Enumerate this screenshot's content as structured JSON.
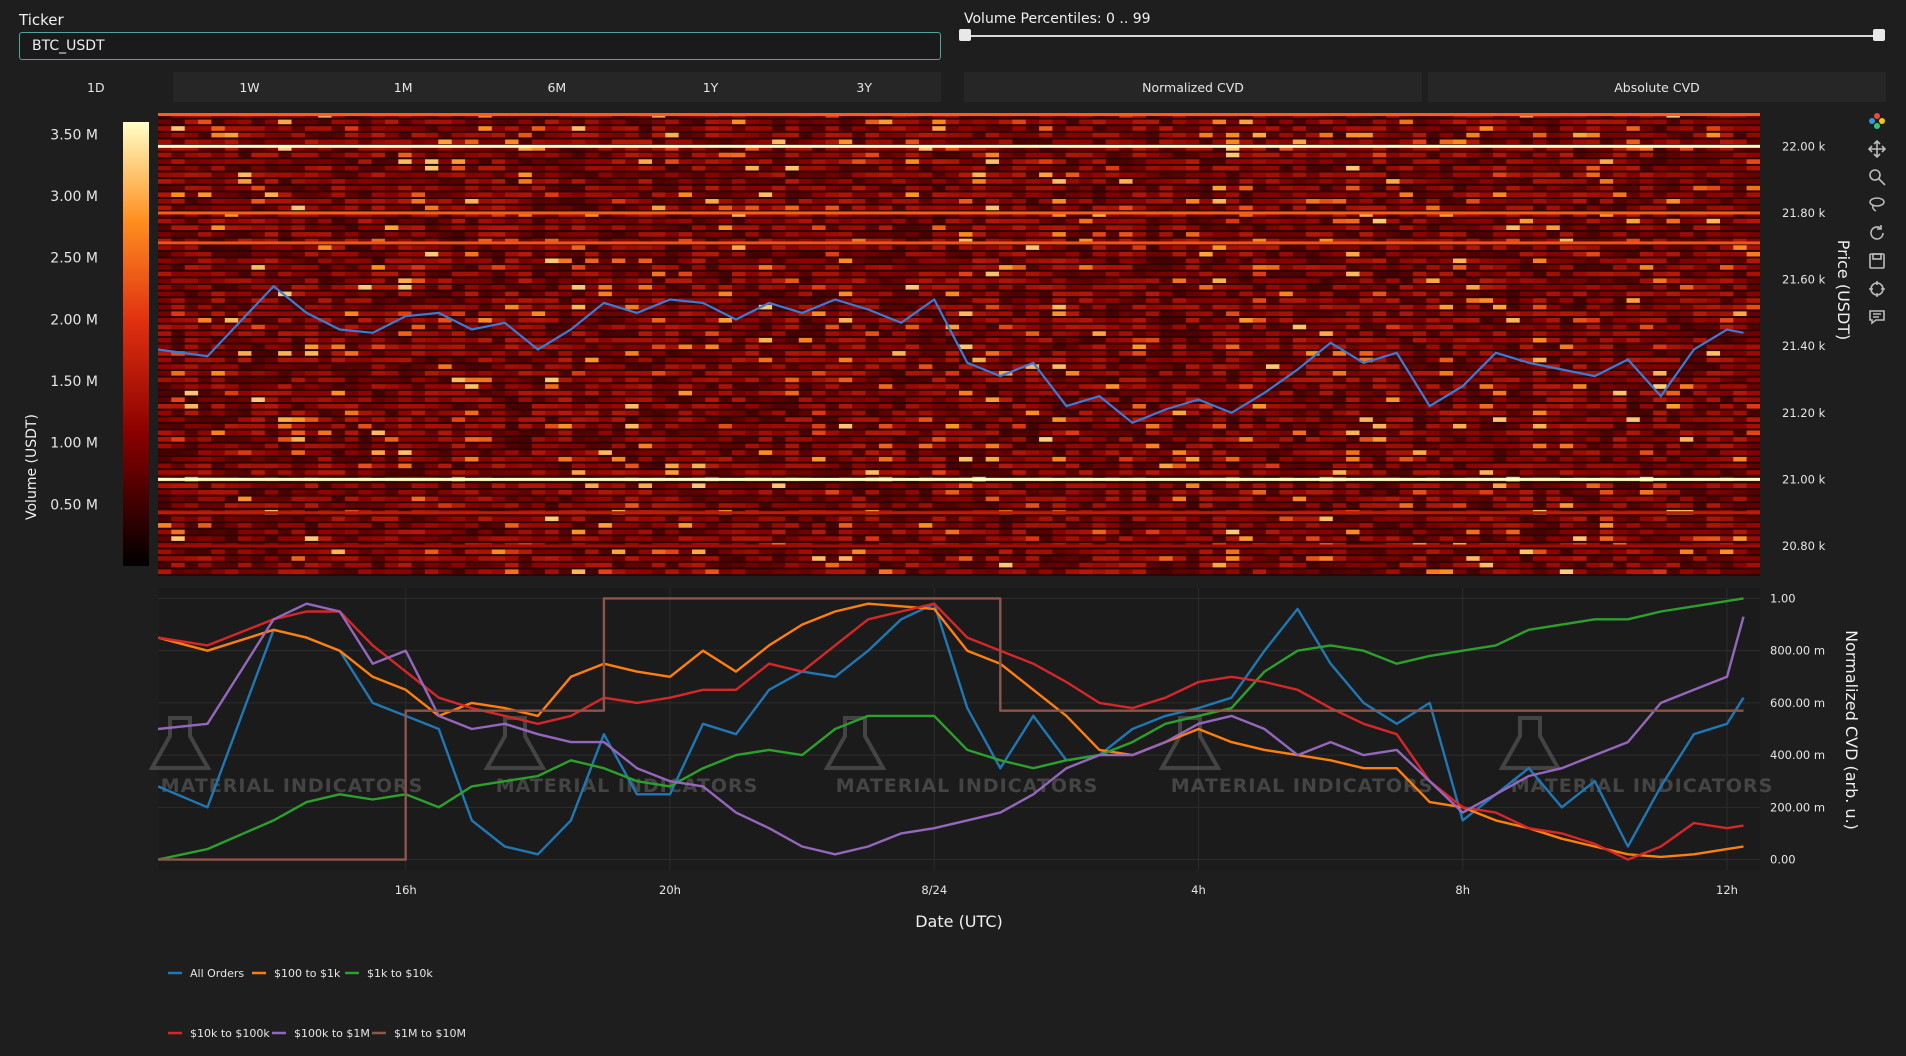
{
  "controls": {
    "ticker_label": "Ticker",
    "ticker_value": "BTC_USDT",
    "volume_label": "Volume Percentiles: 0 .. 99",
    "timeframes": [
      "1D",
      "1W",
      "1M",
      "6M",
      "1Y",
      "3Y"
    ],
    "active_timeframe": 0,
    "cvd_modes": [
      "Normalized CVD",
      "Absolute CVD"
    ]
  },
  "colorbar": {
    "title": "Volume (USDT)",
    "ticks": [
      "3.50 M",
      "3.00 M",
      "2.50 M",
      "2.00 M",
      "1.50 M",
      "1.00 M",
      "0.50 M"
    ],
    "tick_values": [
      3.5,
      3.0,
      2.5,
      2.0,
      1.5,
      1.0,
      0.5
    ],
    "range": [
      0,
      3.6
    ]
  },
  "heatmap": {
    "y_title": "Price (USDT)",
    "y_ticks": [
      "22.00 k",
      "21.80 k",
      "21.60 k",
      "21.40 k",
      "21.20 k",
      "21.00 k",
      "20.80 k"
    ],
    "y_tick_values": [
      22000,
      21800,
      21600,
      21400,
      21200,
      21000,
      20800
    ],
    "y_range": [
      20710,
      22100
    ]
  },
  "cvd_panel": {
    "y_title": "Normalized CVD (arb. u.)",
    "y_ticks": [
      "1.00",
      "800.00 m",
      "600.00 m",
      "400.00 m",
      "200.00 m",
      "0.00"
    ],
    "y_tick_values": [
      1.0,
      0.8,
      0.6,
      0.4,
      0.2,
      0.0
    ],
    "y_range": [
      -0.04,
      1.04
    ]
  },
  "x_axis": {
    "title": "Date (UTC)",
    "ticks": [
      "16h",
      "20h",
      "8/24",
      "4h",
      "8h",
      "12h"
    ],
    "tick_hours": [
      16,
      20,
      24,
      28,
      32,
      36
    ],
    "range_hours": [
      12.25,
      36.5
    ]
  },
  "watermark": [
    "MATERIAL INDICATORS",
    "MATERIAL INDICATORS",
    "MATERIAL INDICATORS",
    "MATERIAL INDICATORS",
    "MATERIAL INDICATORS"
  ],
  "legend": [
    {
      "name": "All Orders",
      "color": "#1f77b4"
    },
    {
      "name": "$100 to $1k",
      "color": "#ff7f0e"
    },
    {
      "name": "$1k to $10k",
      "color": "#2ca02c"
    },
    {
      "name": "$10k to $100k",
      "color": "#d62728"
    },
    {
      "name": "$100k to $1M",
      "color": "#9467bd"
    },
    {
      "name": "$1M to $10M",
      "color": "#8c564b"
    }
  ],
  "chart_data": [
    {
      "type": "heatmap",
      "xlabel": "Date (UTC)",
      "ylabel": "Price (USDT)",
      "x_range_hours": [
        12.25,
        36.5
      ],
      "ylim": [
        20710,
        22100
      ],
      "colorbar_label": "Volume (USDT)",
      "colorbar_range_musdt": [
        0,
        3.6
      ],
      "persistent_levels": [
        {
          "price": 22000,
          "volume_musdt": 3.6
        },
        {
          "price": 21800,
          "volume_musdt": 2.4
        },
        {
          "price": 21710,
          "volume_musdt": 2.3
        },
        {
          "price": 21000,
          "volume_musdt": 3.6
        },
        {
          "price": 20900,
          "volume_musdt": 1.6
        },
        {
          "price": 20800,
          "volume_musdt": 1.3
        }
      ],
      "overlay_line": {
        "name": "Price",
        "color": "#3a7bd5",
        "x_hours": [
          12.25,
          13,
          14,
          14.5,
          15,
          15.5,
          16,
          16.5,
          17,
          17.5,
          18,
          18.5,
          19,
          19.5,
          20,
          20.5,
          21,
          21.5,
          22,
          22.5,
          23,
          23.5,
          24,
          24.5,
          25,
          25.5,
          26,
          26.5,
          27,
          27.5,
          28,
          28.5,
          29,
          29.5,
          30,
          30.5,
          31,
          31.5,
          32,
          32.5,
          33,
          33.5,
          34,
          34.5,
          35,
          35.5,
          36,
          36.25
        ],
        "y": [
          21390,
          21370,
          21580,
          21500,
          21450,
          21440,
          21490,
          21500,
          21450,
          21470,
          21390,
          21450,
          21530,
          21500,
          21540,
          21530,
          21480,
          21530,
          21500,
          21540,
          21510,
          21470,
          21540,
          21350,
          21310,
          21350,
          21220,
          21250,
          21170,
          21210,
          21240,
          21200,
          21260,
          21330,
          21410,
          21350,
          21380,
          21220,
          21280,
          21380,
          21350,
          21330,
          21310,
          21360,
          21250,
          21390,
          21450,
          21440
        ]
      }
    },
    {
      "type": "line",
      "xlabel": "Date (UTC)",
      "ylabel": "Normalized CVD (arb. u.)",
      "x_hours": [
        12.25,
        13,
        14,
        14.5,
        15,
        15.5,
        16,
        16.5,
        17,
        17.5,
        18,
        18.5,
        19,
        19.5,
        20,
        20.5,
        21,
        21.5,
        22,
        22.5,
        23,
        23.5,
        24,
        24.5,
        25,
        25.5,
        26,
        26.5,
        27,
        27.5,
        28,
        28.5,
        29,
        29.5,
        30,
        30.5,
        31,
        31.5,
        32,
        32.5,
        33,
        33.5,
        34,
        34.5,
        35,
        35.5,
        36,
        36.25
      ],
      "ylim": [
        0,
        1
      ],
      "series": [
        {
          "name": "All Orders",
          "values": [
            0.28,
            0.2,
            0.88,
            0.85,
            0.8,
            0.6,
            0.55,
            0.5,
            0.15,
            0.05,
            0.02,
            0.15,
            0.48,
            0.25,
            0.25,
            0.52,
            0.48,
            0.65,
            0.72,
            0.7,
            0.8,
            0.92,
            0.98,
            0.58,
            0.35,
            0.55,
            0.38,
            0.4,
            0.5,
            0.55,
            0.58,
            0.62,
            0.8,
            0.96,
            0.75,
            0.6,
            0.52,
            0.6,
            0.15,
            0.25,
            0.35,
            0.2,
            0.3,
            0.05,
            0.28,
            0.48,
            0.52,
            0.62
          ]
        },
        {
          "name": "$100 to $1k",
          "values": [
            0.85,
            0.8,
            0.88,
            0.85,
            0.8,
            0.7,
            0.65,
            0.55,
            0.6,
            0.58,
            0.55,
            0.7,
            0.75,
            0.72,
            0.7,
            0.8,
            0.72,
            0.82,
            0.9,
            0.95,
            0.98,
            0.97,
            0.96,
            0.8,
            0.75,
            0.65,
            0.55,
            0.42,
            0.4,
            0.45,
            0.5,
            0.45,
            0.42,
            0.4,
            0.38,
            0.35,
            0.35,
            0.22,
            0.2,
            0.15,
            0.12,
            0.08,
            0.05,
            0.02,
            0.01,
            0.02,
            0.04,
            0.05
          ]
        },
        {
          "name": "$1k to $10k",
          "values": [
            0.0,
            0.04,
            0.15,
            0.22,
            0.25,
            0.23,
            0.25,
            0.2,
            0.28,
            0.3,
            0.32,
            0.38,
            0.35,
            0.3,
            0.28,
            0.35,
            0.4,
            0.42,
            0.4,
            0.5,
            0.55,
            0.55,
            0.55,
            0.42,
            0.38,
            0.35,
            0.38,
            0.4,
            0.45,
            0.52,
            0.55,
            0.58,
            0.72,
            0.8,
            0.82,
            0.8,
            0.75,
            0.78,
            0.8,
            0.82,
            0.88,
            0.9,
            0.92,
            0.92,
            0.95,
            0.97,
            0.99,
            1.0
          ]
        },
        {
          "name": "$10k to $100k",
          "values": [
            0.85,
            0.82,
            0.92,
            0.95,
            0.95,
            0.82,
            0.72,
            0.62,
            0.58,
            0.55,
            0.52,
            0.55,
            0.62,
            0.6,
            0.62,
            0.65,
            0.65,
            0.75,
            0.72,
            0.82,
            0.92,
            0.95,
            0.98,
            0.85,
            0.8,
            0.75,
            0.68,
            0.6,
            0.58,
            0.62,
            0.68,
            0.7,
            0.68,
            0.65,
            0.58,
            0.52,
            0.48,
            0.3,
            0.2,
            0.18,
            0.12,
            0.1,
            0.06,
            0.0,
            0.05,
            0.14,
            0.12,
            0.13
          ]
        },
        {
          "name": "$100k to $1M",
          "values": [
            0.5,
            0.52,
            0.92,
            0.98,
            0.95,
            0.75,
            0.8,
            0.55,
            0.5,
            0.52,
            0.48,
            0.45,
            0.45,
            0.35,
            0.3,
            0.28,
            0.18,
            0.12,
            0.05,
            0.02,
            0.05,
            0.1,
            0.12,
            0.15,
            0.18,
            0.25,
            0.35,
            0.4,
            0.4,
            0.45,
            0.52,
            0.55,
            0.5,
            0.4,
            0.45,
            0.4,
            0.42,
            0.3,
            0.18,
            0.25,
            0.32,
            0.35,
            0.4,
            0.45,
            0.6,
            0.65,
            0.7,
            0.93
          ]
        },
        {
          "name": "$1M to $10M",
          "values": [
            0.0,
            0.0,
            0.0,
            0.0,
            0.0,
            0.0,
            0.57,
            0.57,
            0.57,
            0.57,
            0.57,
            0.57,
            1.0,
            1.0,
            1.0,
            1.0,
            1.0,
            1.0,
            1.0,
            1.0,
            1.0,
            1.0,
            1.0,
            1.0,
            0.57,
            0.57,
            0.57,
            0.57,
            0.57,
            0.57,
            0.57,
            0.57,
            0.57,
            0.57,
            0.57,
            0.57,
            0.57,
            0.57,
            0.57,
            0.57,
            0.57,
            0.57,
            0.57,
            0.57,
            0.57,
            0.57,
            0.57,
            0.57
          ]
        }
      ]
    }
  ]
}
